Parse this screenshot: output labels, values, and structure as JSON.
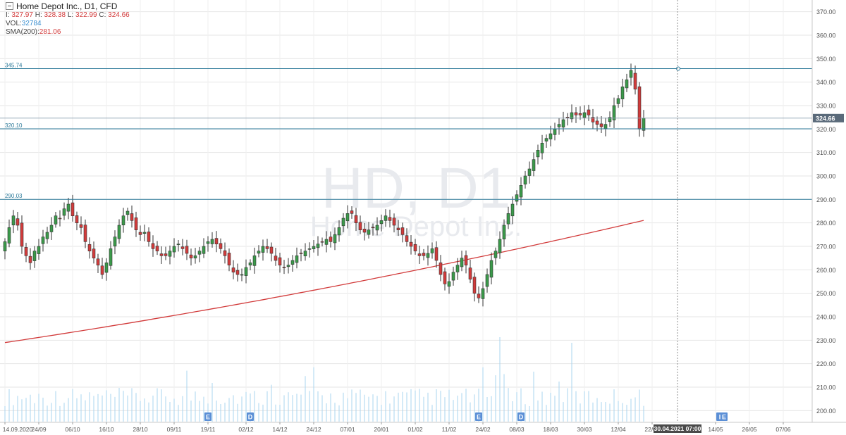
{
  "header": {
    "symbol_line": "Home Depot Inc., D1, CFD",
    "ohlc": [
      {
        "label": "I:",
        "value": "327.97"
      },
      {
        "label": "H:",
        "value": "328.38"
      },
      {
        "label": "L:",
        "value": "322.99"
      },
      {
        "label": "C:",
        "value": "324.66"
      }
    ],
    "volume_label": "VOL:",
    "volume_value": "32784",
    "sma_label": "SMA(200):",
    "sma_value": "281.06"
  },
  "watermark": {
    "main": "HD, D1",
    "sub": "Home Depot Inc."
  },
  "colors": {
    "up": "#3a9a4a",
    "down": "#d23b3b",
    "sma": "#d23b3b",
    "volume": "#a8d4ef",
    "hline": "#2c7a9a",
    "grid": "#e6e6e6",
    "price_tag": "#5a6a7a",
    "marker": "#5b8fd6"
  },
  "crosshair_date": "30.04.2021 07:00",
  "chart_data": {
    "type": "candlestick",
    "price_axis": {
      "min": 195,
      "max": 375,
      "ticks": [
        370,
        360,
        350,
        340,
        330,
        320,
        310,
        300,
        290,
        280,
        270,
        260,
        250,
        240,
        230,
        220,
        210,
        200
      ]
    },
    "last_price": 324.66,
    "horizontal_levels": [
      {
        "label": "345.74",
        "value": 345.74
      },
      {
        "label": "320.10",
        "value": 320.1
      },
      {
        "label": "290.03",
        "value": 290.03
      }
    ],
    "x_tick_labels": [
      {
        "label": "14.09.2020",
        "bar": 0
      },
      {
        "label": "24/09",
        "bar": 8
      },
      {
        "label": "06/10",
        "bar": 16
      },
      {
        "label": "16/10",
        "bar": 24
      },
      {
        "label": "28/10",
        "bar": 32
      },
      {
        "label": "09/11",
        "bar": 40
      },
      {
        "label": "19/11",
        "bar": 48
      },
      {
        "label": "02/12",
        "bar": 57
      },
      {
        "label": "14/12",
        "bar": 65
      },
      {
        "label": "24/12",
        "bar": 73
      },
      {
        "label": "07/01",
        "bar": 81
      },
      {
        "label": "20/01",
        "bar": 89
      },
      {
        "label": "01/02",
        "bar": 97
      },
      {
        "label": "11/02",
        "bar": 105
      },
      {
        "label": "24/02",
        "bar": 113
      },
      {
        "label": "08/03",
        "bar": 121
      },
      {
        "label": "18/03",
        "bar": 129
      },
      {
        "label": "30/03",
        "bar": 137
      },
      {
        "label": "12/04",
        "bar": 145
      },
      {
        "label": "22/04",
        "bar": 153
      },
      {
        "label": "14/05",
        "bar": 168
      },
      {
        "label": "26/05",
        "bar": 176
      },
      {
        "label": "07/06",
        "bar": 184
      }
    ],
    "event_markers": [
      {
        "label": "E",
        "bar": 48
      },
      {
        "label": "D",
        "bar": 58
      },
      {
        "label": "E",
        "bar": 112
      },
      {
        "label": "D",
        "bar": 122
      },
      {
        "label": "I",
        "bar": 169
      },
      {
        "label": "E",
        "bar": 170
      }
    ],
    "closes": [
      272,
      278,
      283,
      279,
      270,
      266,
      263,
      268,
      270,
      274,
      276,
      279,
      283,
      282,
      286,
      288,
      283,
      280,
      278,
      272,
      268,
      265,
      262,
      258,
      263,
      269,
      274,
      279,
      283,
      285,
      281,
      277,
      275,
      276,
      272,
      269,
      268,
      266,
      266,
      268,
      270,
      271,
      269,
      267,
      265,
      266,
      268,
      270,
      272,
      273,
      271,
      269,
      266,
      262,
      259,
      258,
      258,
      261,
      263,
      266,
      268,
      270,
      269,
      267,
      264,
      262,
      261,
      262,
      264,
      266,
      267,
      268,
      269,
      270,
      271,
      272,
      273,
      272,
      275,
      278,
      282,
      284,
      284,
      280,
      277,
      276,
      277,
      278,
      279,
      281,
      283,
      281,
      279,
      277,
      275,
      272,
      270,
      268,
      266,
      266,
      267,
      269,
      264,
      258,
      254,
      255,
      259,
      262,
      265,
      262,
      256,
      250,
      248,
      252,
      258,
      264,
      268,
      273,
      279,
      284,
      288,
      292,
      296,
      300,
      303,
      307,
      311,
      314,
      316,
      318,
      320,
      322,
      324,
      325,
      327,
      326,
      326,
      327,
      326,
      323,
      322,
      321,
      322,
      325,
      330,
      333,
      338,
      341,
      345,
      337,
      320,
      324.66
    ],
    "sma200": {
      "start": 229,
      "end": 281.06
    },
    "volume_scale_note": "volume bars in thousands"
  }
}
